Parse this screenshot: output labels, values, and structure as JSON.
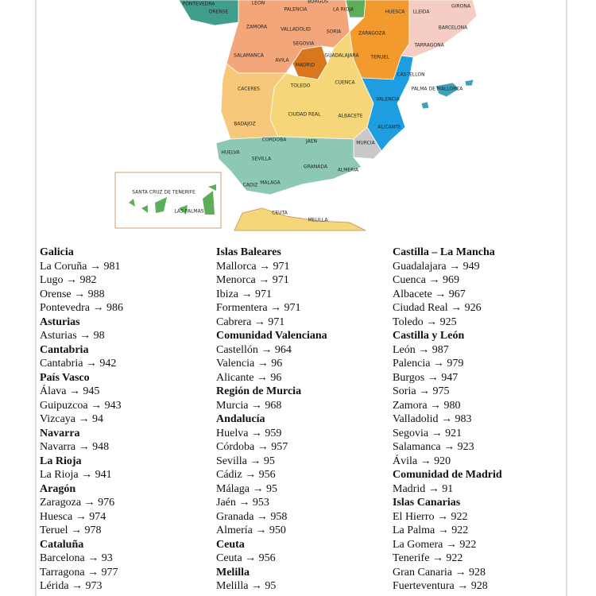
{
  "map": {
    "labels": [
      "PONTEVEDRA",
      "ORENSE",
      "LEON",
      "BURGOS",
      "LA RIOJA",
      "PALENCIA",
      "HUESCA",
      "LLEIDA",
      "GIRONA",
      "ZAMORA",
      "VALLADOLID",
      "SORIA",
      "ZARAGOZA",
      "BARCELONA",
      "TARRAGONA",
      "SEGOVIA",
      "SALAMANCA",
      "AVILA",
      "MADRID",
      "GUADALAJARA",
      "TERUEL",
      "CASTELLON",
      "CACERES",
      "TOLEDO",
      "CUENCA",
      "VALENCIA",
      "PALMA DE MALLORCA",
      "BADAJOZ",
      "CIUDAD REAL",
      "ALBACETE",
      "ALICANTE",
      "CORDOBA",
      "JAEN",
      "MURCIA",
      "HUELVA",
      "SEVILLA",
      "GRANADA",
      "ALMERIA",
      "CADIZ",
      "MALAGA",
      "SANTA CRUZ DE TENERIFE",
      "LAS PALMAS",
      "CEUTA",
      "MELILLA"
    ]
  },
  "columns": [
    {
      "sections": [
        {
          "title": "Galicia",
          "items": [
            "La Coruña → 981",
            "Lugo → 982",
            "Orense → 988",
            "Pontevedra → 986"
          ]
        },
        {
          "title": "Asturias",
          "items": [
            "Asturias → 98"
          ]
        },
        {
          "title": "Cantabria",
          "items": [
            "Cantabria → 942"
          ]
        },
        {
          "title": "País Vasco",
          "items": [
            "Álava → 945",
            "Guipuzcoa → 943",
            "Vizcaya → 94"
          ]
        },
        {
          "title": "Navarra",
          "items": [
            "Navarra → 948"
          ]
        },
        {
          "title": "La Rioja",
          "items": [
            "La Rioja → 941"
          ]
        },
        {
          "title": "Aragón",
          "items": [
            "Zaragoza → 976",
            "Huesca → 974",
            "Teruel → 978"
          ]
        },
        {
          "title": "Cataluña",
          "items": [
            "Barcelona → 93",
            "Tarragona → 977",
            "Lérida → 973"
          ]
        }
      ]
    },
    {
      "sections": [
        {
          "title": "Islas Baleares",
          "items": [
            "Mallorca → 971",
            "Menorca → 971",
            "Ibiza → 971",
            "Formentera → 971",
            "Cabrera → 971"
          ]
        },
        {
          "title": "Comunidad Valenciana",
          "items": [
            "Castellón → 964",
            "Valencia → 96",
            "Alicante → 96"
          ]
        },
        {
          "title": "Región de Murcia",
          "items": [
            "Murcia → 968"
          ]
        },
        {
          "title": "Andalucía",
          "items": [
            "Huelva → 959",
            "Córdoba → 957",
            "Sevilla → 95",
            "Cádiz → 956",
            "Málaga → 95",
            "Jaén → 953",
            "Granada → 958",
            "Almería → 950"
          ]
        },
        {
          "title": "Ceuta",
          "items": [
            "Ceuta → 956"
          ]
        },
        {
          "title": "Melilla",
          "items": [
            "Melilla → 95"
          ]
        }
      ]
    },
    {
      "sections": [
        {
          "title": "Castilla – La Mancha",
          "items": [
            "Guadalajara → 949",
            "Cuenca → 969",
            "Albacete → 967",
            "Ciudad Real → 926",
            "Toledo → 925"
          ]
        },
        {
          "title": "Castilla y León",
          "items": [
            "León → 987",
            "Palencia → 979",
            "Burgos → 947",
            "Soria → 975",
            "Zamora → 980",
            "Valladolid → 983",
            "Segovia → 921",
            "Salamanca → 923",
            "Ávila → 920"
          ]
        },
        {
          "title": "Comunidad de Madrid",
          "items": [
            "Madrid → 91"
          ]
        },
        {
          "title": "Islas Canarias",
          "items": [
            "El Hierro → 922",
            "La Palma → 922",
            "La Gomera → 922",
            "Tenerife → 922",
            "Gran Canaria → 928",
            "Fuerteventura → 928"
          ]
        }
      ]
    }
  ]
}
